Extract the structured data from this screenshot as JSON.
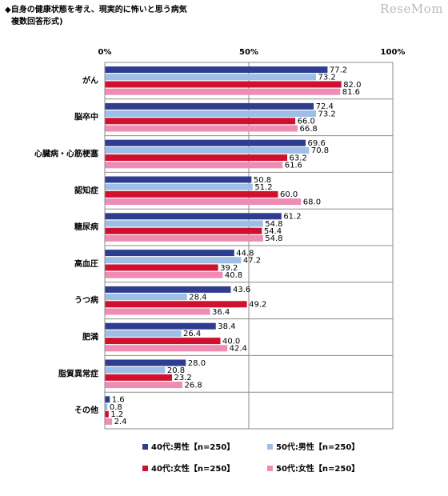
{
  "header": {
    "title_line1": "◆自身の健康状態を考え、現実的に怖いと思う病気",
    "title_line2": "複数回答形式)",
    "logo": "ReseMom"
  },
  "chart_data": {
    "type": "bar",
    "orientation": "horizontal",
    "categories": [
      "がん",
      "脳卒中",
      "心臓病・心筋梗塞",
      "認知症",
      "糖尿病",
      "高血圧",
      "うつ病",
      "肥満",
      "脂質異常症",
      "その他"
    ],
    "series": [
      {
        "name": "40代:男性【n=250】",
        "color": "#2e3d8f",
        "values": [
          77.2,
          72.4,
          69.6,
          50.8,
          61.2,
          44.8,
          43.6,
          38.4,
          28.0,
          1.6
        ]
      },
      {
        "name": "50代:男性【n=250】",
        "color": "#9dbfe6",
        "values": [
          73.2,
          73.2,
          70.8,
          51.2,
          54.8,
          47.2,
          28.4,
          26.4,
          20.8,
          0.8
        ]
      },
      {
        "name": "40代:女性【n=250】",
        "color": "#d0102e",
        "values": [
          82.0,
          66.0,
          63.2,
          60.0,
          54.4,
          39.2,
          49.2,
          40.0,
          23.2,
          1.2
        ]
      },
      {
        "name": "50代:女性【n=250】",
        "color": "#ee8cb4",
        "values": [
          81.6,
          66.8,
          61.6,
          68.0,
          54.8,
          40.8,
          36.4,
          42.4,
          26.8,
          2.4
        ]
      }
    ],
    "value_labels": [
      [
        "77.2",
        "72.4",
        "69.6",
        "50.8",
        "61.2",
        "44.8",
        "43.6",
        "38.4",
        "28.0",
        "1.6"
      ],
      [
        "73.2",
        "73.2",
        "70.8",
        "51.2",
        "54.8",
        "47.2",
        "28.4",
        "26.4",
        "20.8",
        "0.8"
      ],
      [
        "82.0",
        "66.0",
        "63.2",
        "60.0",
        "54.4",
        "39.2",
        "49.2",
        "40.0",
        "23.2",
        "1.2"
      ],
      [
        "81.6",
        "66.8",
        "61.6",
        "68.0",
        "54.8",
        "40.8",
        "36.4",
        "42.4",
        "26.8",
        "2.4"
      ]
    ],
    "xlim": [
      0,
      100
    ],
    "x_ticks": [
      {
        "value": 0,
        "label": "0%"
      },
      {
        "value": 50,
        "label": "50%"
      },
      {
        "value": 100,
        "label": "100%"
      }
    ],
    "grid": true,
    "legend_position": "bottom"
  }
}
